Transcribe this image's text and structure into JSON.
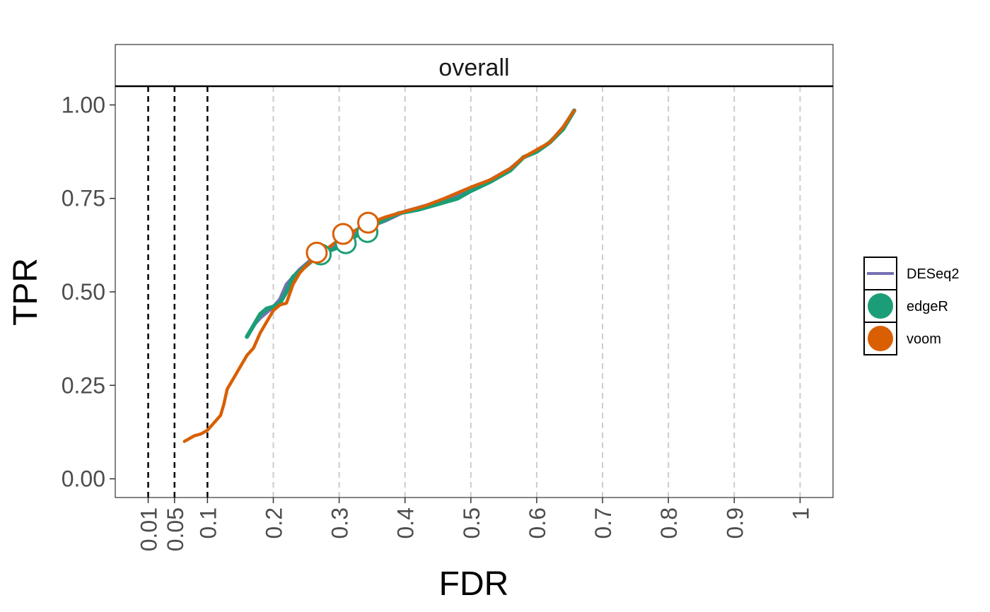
{
  "chart_data": {
    "type": "line",
    "facet_title": "overall",
    "xlabel": "FDR",
    "ylabel": "TPR",
    "x_tick_labels": [
      "0.01",
      "0.05",
      "0.1",
      "0.2",
      "0.3",
      "0.4",
      "0.5",
      "0.6",
      "0.7",
      "0.8",
      "0.9",
      "1"
    ],
    "x_tick_values": [
      0.01,
      0.05,
      0.1,
      0.2,
      0.3,
      0.4,
      0.5,
      0.6,
      0.7,
      0.8,
      0.9,
      1
    ],
    "y_tick_labels": [
      "0.00",
      "0.25",
      "0.50",
      "0.75",
      "1.00"
    ],
    "y_tick_values": [
      0,
      0.25,
      0.5,
      0.75,
      1.0
    ],
    "xlim": [
      -0.04,
      1.05
    ],
    "ylim": [
      -0.05,
      1.05
    ],
    "reference_lines_dashed_black": [
      0.01,
      0.05,
      0.1
    ],
    "grid": "vertical dashed grey at x ticks",
    "legend_position": "right",
    "series": [
      {
        "name": "DESeq2",
        "color": "#7570B3",
        "x": [
          0.17,
          0.18,
          0.2,
          0.21,
          0.22,
          0.24,
          0.26,
          0.28,
          0.31,
          0.34,
          0.37,
          0.4,
          0.43,
          0.46,
          0.5,
          0.53,
          0.56,
          0.58,
          0.6,
          0.62,
          0.64,
          0.657
        ],
        "y": [
          0.41,
          0.43,
          0.46,
          0.48,
          0.52,
          0.56,
          0.59,
          0.61,
          0.64,
          0.67,
          0.69,
          0.715,
          0.73,
          0.745,
          0.775,
          0.8,
          0.83,
          0.86,
          0.875,
          0.9,
          0.94,
          0.985
        ],
        "points": []
      },
      {
        "name": "edgeR",
        "color": "#1B9E77",
        "x": [
          0.16,
          0.17,
          0.18,
          0.19,
          0.2,
          0.21,
          0.22,
          0.23,
          0.25,
          0.27,
          0.3,
          0.33,
          0.36,
          0.39,
          0.42,
          0.45,
          0.48,
          0.5,
          0.53,
          0.56,
          0.58,
          0.6,
          0.62,
          0.64,
          0.657
        ],
        "y": [
          0.38,
          0.41,
          0.44,
          0.455,
          0.46,
          0.47,
          0.5,
          0.54,
          0.57,
          0.6,
          0.62,
          0.655,
          0.685,
          0.71,
          0.72,
          0.735,
          0.75,
          0.77,
          0.795,
          0.825,
          0.86,
          0.875,
          0.9,
          0.935,
          0.985
        ],
        "points": [
          {
            "x": 0.272,
            "y": 0.6
          },
          {
            "x": 0.31,
            "y": 0.63
          },
          {
            "x": 0.343,
            "y": 0.66
          }
        ]
      },
      {
        "name": "voom",
        "color": "#D95F02",
        "x": [
          0.065,
          0.08,
          0.09,
          0.1,
          0.11,
          0.12,
          0.125,
          0.13,
          0.14,
          0.15,
          0.16,
          0.17,
          0.18,
          0.19,
          0.2,
          0.21,
          0.22,
          0.23,
          0.24,
          0.25,
          0.27,
          0.3,
          0.34,
          0.37,
          0.4,
          0.43,
          0.46,
          0.5,
          0.53,
          0.56,
          0.58,
          0.6,
          0.62,
          0.64,
          0.657
        ],
        "y": [
          0.1,
          0.115,
          0.12,
          0.13,
          0.15,
          0.17,
          0.2,
          0.24,
          0.27,
          0.3,
          0.33,
          0.35,
          0.39,
          0.42,
          0.45,
          0.465,
          0.47,
          0.52,
          0.55,
          0.57,
          0.6,
          0.64,
          0.68,
          0.7,
          0.715,
          0.73,
          0.75,
          0.78,
          0.8,
          0.83,
          0.86,
          0.88,
          0.9,
          0.94,
          0.985
        ],
        "points": [
          {
            "x": 0.266,
            "y": 0.605
          },
          {
            "x": 0.306,
            "y": 0.655
          },
          {
            "x": 0.344,
            "y": 0.685
          }
        ]
      }
    ]
  },
  "legend": {
    "items": [
      {
        "label": "DESeq2",
        "color": "#7570B3",
        "glyph": "line"
      },
      {
        "label": "edgeR",
        "color": "#1B9E77",
        "glyph": "point"
      },
      {
        "label": "voom",
        "color": "#D95F02",
        "glyph": "point"
      }
    ]
  }
}
